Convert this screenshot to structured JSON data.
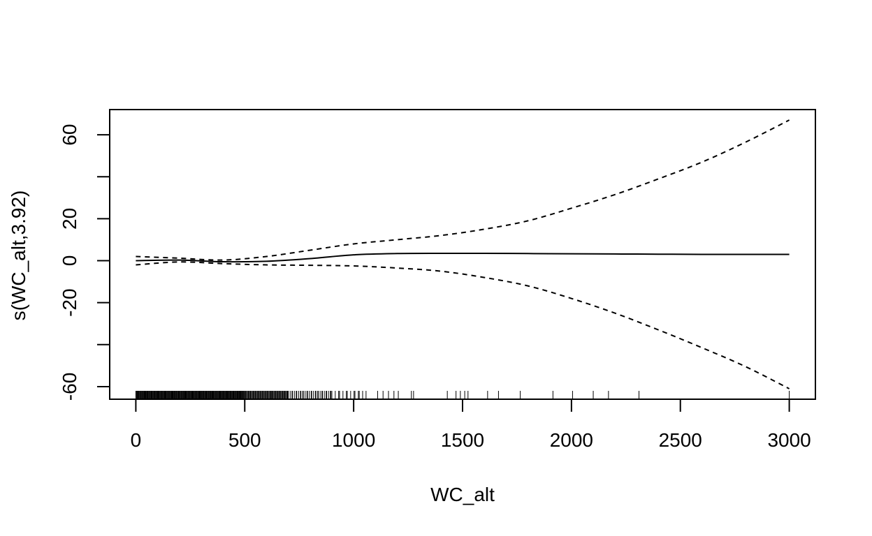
{
  "chart_data": {
    "type": "line",
    "title": "",
    "xlabel": "WC_alt",
    "ylabel": "s(WC_alt,3.92)",
    "xlim": [
      -120,
      3120
    ],
    "ylim": [
      -66,
      72
    ],
    "x_ticks": [
      0,
      500,
      1000,
      1500,
      2000,
      2500,
      3000
    ],
    "x_tick_labels": [
      "0",
      "500",
      "1000",
      "1500",
      "2000",
      "2500",
      "3000"
    ],
    "y_ticks": [
      -60,
      -40,
      -20,
      0,
      20,
      40,
      60
    ],
    "y_tick_labels": [
      "-60",
      "",
      "-20",
      "0",
      "20",
      "",
      "60"
    ],
    "grid": false,
    "legend": "none",
    "series": [
      {
        "role": "fit",
        "style": "solid",
        "x": [
          0,
          200,
          400,
          600,
          800,
          1000,
          1200,
          1400,
          1600,
          1800,
          2000,
          2200,
          2400,
          2600,
          2800,
          3000
        ],
        "y": [
          0,
          0.3,
          -0.5,
          -0.3,
          1.0,
          2.8,
          3.4,
          3.5,
          3.5,
          3.4,
          3.3,
          3.2,
          3.1,
          3.0,
          3.0,
          3.0
        ]
      },
      {
        "role": "upper",
        "style": "dashed",
        "x": [
          0,
          200,
          400,
          600,
          800,
          1000,
          1200,
          1400,
          1600,
          1800,
          2000,
          2200,
          2400,
          2600,
          2800,
          3000
        ],
        "y": [
          2,
          1.2,
          0.3,
          2.0,
          5.0,
          8.0,
          10.0,
          12.0,
          15.0,
          19.0,
          25.0,
          31.5,
          39.0,
          47.0,
          56.5,
          67.0
        ]
      },
      {
        "role": "lower",
        "style": "dashed",
        "x": [
          0,
          200,
          400,
          600,
          800,
          1000,
          1200,
          1400,
          1600,
          1800,
          2000,
          2200,
          2400,
          2600,
          2800,
          3000
        ],
        "y": [
          -2,
          -0.6,
          -1.4,
          -2.0,
          -2.2,
          -2.5,
          -3.5,
          -5.0,
          -8.0,
          -12.0,
          -18.0,
          -25.0,
          -33.0,
          -41.5,
          -50.5,
          -61.0
        ]
      }
    ],
    "rug": {
      "dense_ranges": [
        [
          0,
          500
        ],
        [
          500,
          700
        ],
        [
          700,
          900
        ],
        [
          900,
          1060
        ]
      ],
      "dense_counts": [
        220,
        70,
        32,
        14
      ],
      "x": [
        1110,
        1135,
        1160,
        1185,
        1205,
        1265,
        1275,
        1430,
        1470,
        1490,
        1510,
        1525,
        1615,
        1665,
        1765,
        1915,
        2005,
        2100,
        2170,
        2310,
        3000
      ]
    }
  }
}
